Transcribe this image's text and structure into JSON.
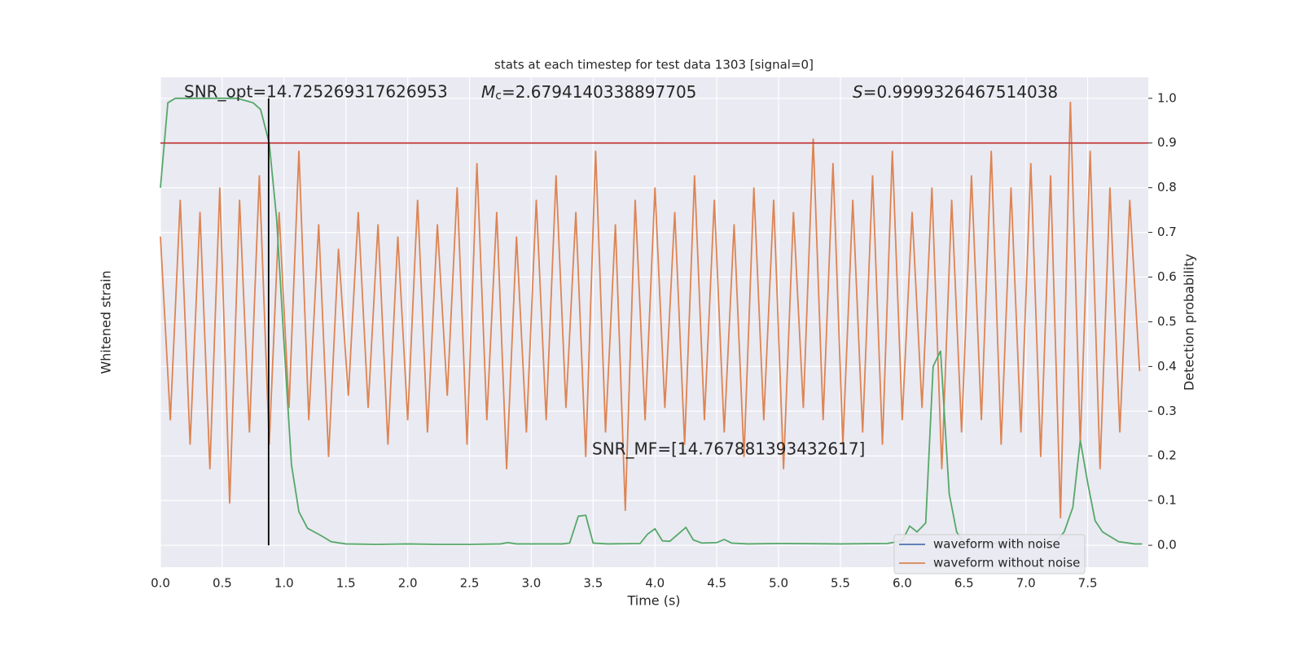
{
  "chart_data": {
    "type": "line",
    "title": "stats at each timestep for test data 1303 [signal=0]",
    "xlabel": "Time (s)",
    "ylabel": "Whitened strain",
    "y2label": "Detection probability",
    "xlim": [
      0,
      7.99
    ],
    "xticks": [
      {
        "value": 0,
        "label": "0.0"
      },
      0.5,
      {
        "value": 1,
        "label": "1.0"
      },
      1.5,
      {
        "value": 2,
        "label": "2.0"
      },
      2.5,
      {
        "value": 3,
        "label": "3.0"
      },
      3.5,
      {
        "value": 4,
        "label": "4.0"
      },
      4.5,
      {
        "value": 5,
        "label": "5.0"
      },
      5.5,
      {
        "value": 6,
        "label": "6.0"
      },
      6.5,
      {
        "value": 7,
        "label": "7.0"
      },
      7.5
    ],
    "ylim": [
      -1,
      1
    ],
    "y2lim": [
      -0.049,
      1.047
    ],
    "y2ticks": [
      {
        "value": 0,
        "label": "0.0"
      },
      0.1,
      0.2,
      0.3,
      0.4,
      0.5,
      0.6,
      0.7,
      0.8,
      0.9,
      {
        "value": 1,
        "label": "1.0"
      }
    ],
    "grid": true,
    "legend": "lower right",
    "annotations": [
      {
        "text": "SNR_opt=14.725269317626953"
      },
      {
        "symbol": "M",
        "subscript": "c",
        "text": "=2.6794140338897705"
      },
      {
        "symbol": "S",
        "text": "=0.9999326467514038"
      },
      {
        "text": "SNR_MF=[14.767881393432617]"
      }
    ],
    "threshold": 0.9,
    "threshold_color": "#c03a3a",
    "vline": 0.875,
    "series": [
      {
        "name": "waveform with noise",
        "color": "#4c72b0"
      },
      {
        "name": "waveform without noise",
        "color": "#dd8452",
        "x": [
          0,
          0.08,
          0.16,
          0.24,
          0.32,
          0.4,
          0.48,
          0.56,
          0.64,
          0.72,
          0.8,
          0.88,
          0.96,
          1.04,
          1.12,
          1.2,
          1.28,
          1.36,
          1.44,
          1.52,
          1.6,
          1.68,
          1.76,
          1.84,
          1.92,
          2,
          2.08,
          2.16,
          2.24,
          2.32,
          2.4,
          2.48,
          2.56,
          2.64,
          2.72,
          2.8,
          2.88,
          2.96,
          3.04,
          3.12,
          3.2,
          3.28,
          3.36,
          3.44,
          3.52,
          3.6,
          3.68,
          3.76,
          3.84,
          3.92,
          4,
          4.08,
          4.16,
          4.24,
          4.32,
          4.4,
          4.48,
          4.56,
          4.64,
          4.72,
          4.8,
          4.88,
          4.96,
          5.04,
          5.12,
          5.2,
          5.28,
          5.36,
          5.44,
          5.52,
          5.6,
          5.68,
          5.76,
          5.84,
          5.92,
          6,
          6.08,
          6.16,
          6.24,
          6.32,
          6.4,
          6.48,
          6.56,
          6.64,
          6.72,
          6.8,
          6.88,
          6.96,
          7.04,
          7.12,
          7.2,
          7.28,
          7.36,
          7.44,
          7.52,
          7.6,
          7.68,
          7.76,
          7.84,
          7.92
        ],
        "values": [
          0.35,
          -0.4,
          0.5,
          -0.5,
          0.45,
          -0.6,
          0.55,
          -0.74,
          0.5,
          -0.45,
          0.6,
          -0.5,
          0.45,
          -0.35,
          0.7,
          -0.4,
          0.4,
          -0.55,
          0.3,
          -0.3,
          0.45,
          -0.35,
          0.4,
          -0.5,
          0.35,
          -0.4,
          0.5,
          -0.45,
          0.4,
          -0.3,
          0.55,
          -0.5,
          0.65,
          -0.4,
          0.45,
          -0.6,
          0.35,
          -0.45,
          0.5,
          -0.4,
          0.6,
          -0.35,
          0.45,
          -0.55,
          0.7,
          -0.45,
          0.4,
          -0.77,
          0.5,
          -0.4,
          0.55,
          -0.35,
          0.45,
          -0.5,
          0.6,
          -0.4,
          0.5,
          -0.45,
          0.4,
          -0.55,
          0.55,
          -0.4,
          0.5,
          -0.6,
          0.45,
          -0.35,
          0.75,
          -0.4,
          0.65,
          -0.5,
          0.5,
          -0.45,
          0.6,
          -0.5,
          0.7,
          -0.4,
          0.45,
          -0.35,
          0.55,
          -0.6,
          0.5,
          -0.45,
          0.6,
          -0.4,
          0.7,
          -0.5,
          0.55,
          -0.45,
          0.65,
          -0.55,
          0.6,
          -0.8,
          0.9,
          -0.5,
          0.7,
          -0.6,
          0.55,
          -0.45,
          0.5,
          -0.2
        ]
      },
      {
        "color": "#55a868",
        "axis": "y2",
        "x": [
          0,
          0.06,
          0.12,
          0.25,
          0.5,
          0.62,
          0.75,
          0.81,
          0.88,
          0.94,
          1,
          1.06,
          1.12,
          1.19,
          1.31,
          1.38,
          1.5,
          1.75,
          2,
          2.25,
          2.5,
          2.75,
          2.81,
          2.88,
          3,
          3.25,
          3.31,
          3.38,
          3.44,
          3.5,
          3.62,
          3.88,
          3.94,
          4,
          4.06,
          4.12,
          4.25,
          4.31,
          4.38,
          4.5,
          4.56,
          4.62,
          4.75,
          5,
          5.5,
          5.88,
          6,
          6.06,
          6.12,
          6.19,
          6.25,
          6.31,
          6.38,
          6.44,
          6.5,
          7,
          7.25,
          7.31,
          7.38,
          7.44,
          7.5,
          7.56,
          7.62,
          7.75,
          7.88,
          7.94
        ],
        "values": [
          0.8,
          0.99,
          1,
          1,
          1,
          1,
          0.99,
          0.975,
          0.9,
          0.73,
          0.45,
          0.18,
          0.075,
          0.038,
          0.02,
          0.008,
          0.003,
          0.002,
          0.003,
          0.002,
          0.002,
          0.003,
          0.006,
          0.003,
          0.003,
          0.003,
          0.005,
          0.065,
          0.067,
          0.005,
          0.003,
          0.004,
          0.025,
          0.037,
          0.01,
          0.009,
          0.04,
          0.012,
          0.005,
          0.006,
          0.013,
          0.005,
          0.003,
          0.004,
          0.003,
          0.004,
          0.01,
          0.043,
          0.03,
          0.05,
          0.4,
          0.435,
          0.115,
          0.03,
          0.005,
          0.003,
          0.01,
          0.03,
          0.085,
          0.235,
          0.14,
          0.055,
          0.03,
          0.008,
          0.003,
          0.003
        ]
      }
    ]
  }
}
